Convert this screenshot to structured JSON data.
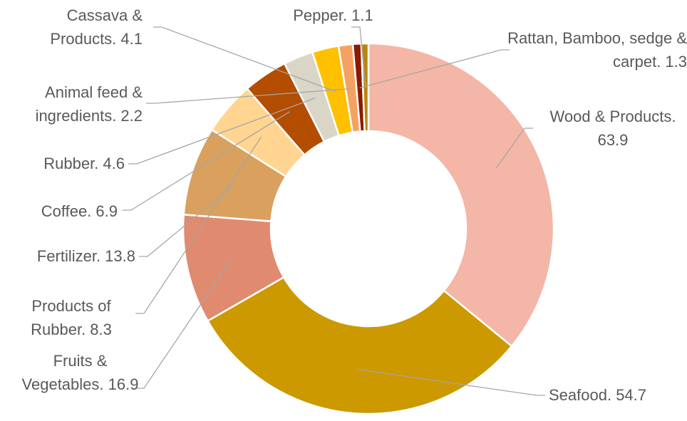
{
  "chart_data": {
    "type": "pie",
    "donut": true,
    "values": [
      63.9,
      54.7,
      16.9,
      13.8,
      8.3,
      6.9,
      4.6,
      4.1,
      2.2,
      1.3,
      1.1
    ],
    "value_labels": [
      "Wood & Products. 63.9",
      "Seafood. 54.7",
      "Fruits & Vegetables. 16.9",
      "Fertilizer. 13.8",
      "Products of Rubber. 8.3",
      "Coffee. 6.9",
      "Rubber. 4.6",
      "Cassava & Products. 4.1",
      "Animal feed & ingredients. 2.2",
      "Rattan, Bamboo, sedge & carpet. 1.3",
      "Pepper. 1.1"
    ],
    "colors": [
      "#f4b6a6",
      "#cc9900",
      "#e08a6f",
      "#d9a05e",
      "#ffd591",
      "#b34d00",
      "#d9d5c7",
      "#ffc000",
      "#f4a261",
      "#8b1a00",
      "#b8860b"
    ]
  }
}
